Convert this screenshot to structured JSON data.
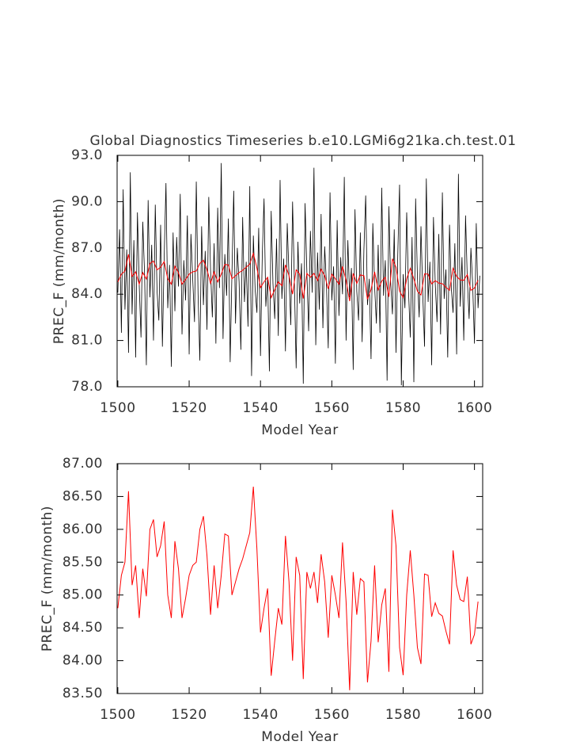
{
  "chart_data": [
    {
      "type": "line",
      "title": "Global Diagnostics Timeseries b.e10.LGMi6g21ka.ch.test.01",
      "xlabel": "Model Year",
      "ylabel": "PREC_F (mm/month)",
      "xlim": [
        1499.8,
        1602.3
      ],
      "xticks": [
        1500,
        1520,
        1540,
        1560,
        1580,
        1600
      ],
      "ylim": [
        78,
        93
      ],
      "yticks": [
        {
          "value": 78,
          "label": "78.0"
        },
        {
          "value": 81,
          "label": "81.0"
        },
        {
          "value": 84,
          "label": "84.0"
        },
        {
          "value": 87,
          "label": "87.0"
        },
        {
          "value": 90,
          "label": "90.0"
        },
        {
          "value": 93,
          "label": "93.0"
        }
      ],
      "series": [
        {
          "color": "#000000",
          "x": [
            1500,
            1500.5,
            1501,
            1501.5,
            1502,
            1502.5,
            1503,
            1503.5,
            1504,
            1504.5,
            1505,
            1505.5,
            1506,
            1506.5,
            1507,
            1507.5,
            1508,
            1508.5,
            1509,
            1509.5,
            1510,
            1510.5,
            1511,
            1511.5,
            1512,
            1512.5,
            1513,
            1513.5,
            1514,
            1514.5,
            1515,
            1515.5,
            1516,
            1516.5,
            1517,
            1517.5,
            1518,
            1518.5,
            1519,
            1519.5,
            1520,
            1520.5,
            1521,
            1521.5,
            1522,
            1522.5,
            1523,
            1523.5,
            1524,
            1524.5,
            1525,
            1525.5,
            1526,
            1526.5,
            1527,
            1527.5,
            1528,
            1528.5,
            1529,
            1529.5,
            1530,
            1530.5,
            1531,
            1531.5,
            1532,
            1532.5,
            1533,
            1533.5,
            1534,
            1534.5,
            1535,
            1535.5,
            1536,
            1536.5,
            1537,
            1537.5,
            1538,
            1538.5,
            1539,
            1539.5,
            1540,
            1540.5,
            1541,
            1541.5,
            1542,
            1542.5,
            1543,
            1543.5,
            1544,
            1544.5,
            1545,
            1545.5,
            1546,
            1546.5,
            1547,
            1547.5,
            1548,
            1548.5,
            1549,
            1549.5,
            1550,
            1550.5,
            1551,
            1551.5,
            1552,
            1552.5,
            1553,
            1553.5,
            1554,
            1554.5,
            1555,
            1555.5,
            1556,
            1556.5,
            1557,
            1557.5,
            1558,
            1558.5,
            1559,
            1559.5,
            1560,
            1560.5,
            1561,
            1561.5,
            1562,
            1562.5,
            1563,
            1563.5,
            1564,
            1564.5,
            1565,
            1565.5,
            1566,
            1566.5,
            1567,
            1567.5,
            1568,
            1568.5,
            1569,
            1569.5,
            1570,
            1570.5,
            1571,
            1571.5,
            1572,
            1572.5,
            1573,
            1573.5,
            1574,
            1574.5,
            1575,
            1575.5,
            1576,
            1576.5,
            1577,
            1577.5,
            1578,
            1578.5,
            1579,
            1579.5,
            1580,
            1580.5,
            1581,
            1581.5,
            1582,
            1582.5,
            1583,
            1583.5,
            1584,
            1584.5,
            1585,
            1585.5,
            1586,
            1586.5,
            1587,
            1587.5,
            1588,
            1588.5,
            1589,
            1589.5,
            1590,
            1590.5,
            1591,
            1591.5,
            1592,
            1592.5,
            1593,
            1593.5,
            1594,
            1594.5,
            1595,
            1595.5,
            1596,
            1596.5,
            1597,
            1597.5,
            1598,
            1598.5,
            1599,
            1599.5,
            1600,
            1600.5,
            1601,
            1601.5
          ],
          "values": [
            84.1,
            88.2,
            81.5,
            90.8,
            83.0,
            86.9,
            80.2,
            91.9,
            82.7,
            87.5,
            79.9,
            89.3,
            84.6,
            81.2,
            88.7,
            85.3,
            79.4,
            90.1,
            83.8,
            87.2,
            81.0,
            89.8,
            84.2,
            82.3,
            88.5,
            80.6,
            86.4,
            91.2,
            83.1,
            85.9,
            79.3,
            88.0,
            82.9,
            87.7,
            84.5,
            90.5,
            81.4,
            86.2,
            83.6,
            89.1,
            80.1,
            87.9,
            85.0,
            82.2,
            91.3,
            84.0,
            79.7,
            88.4,
            83.3,
            86.8,
            81.7,
            90.3,
            85.6,
            82.5,
            87.3,
            80.8,
            89.6,
            84.4,
            92.5,
            81.1,
            86.6,
            83.9,
            88.9,
            79.6,
            85.4,
            90.7,
            82.1,
            87.0,
            84.8,
            80.4,
            89.0,
            83.5,
            86.1,
            81.9,
            91.0,
            78.7,
            87.8,
            84.3,
            82.8,
            88.3,
            80.0,
            86.5,
            90.2,
            83.2,
            85.1,
            79.0,
            89.4,
            84.7,
            82.4,
            87.6,
            81.3,
            91.4,
            83.7,
            86.3,
            80.3,
            88.6,
            85.2,
            82.0,
            90.0,
            84.9,
            79.2,
            87.4,
            83.4,
            86.0,
            78.2,
            89.9,
            85.5,
            81.6,
            88.1,
            84.1,
            92.2,
            80.7,
            86.7,
            83.0,
            89.2,
            81.8,
            87.1,
            84.6,
            80.5,
            90.6,
            83.6,
            85.8,
            79.5,
            88.8,
            82.6,
            86.4,
            84.0,
            91.6,
            81.0,
            87.5,
            83.8,
            85.7,
            79.1,
            89.5,
            84.2,
            82.3,
            88.0,
            80.9,
            86.9,
            90.4,
            83.3,
            85.0,
            79.8,
            88.6,
            84.5,
            82.1,
            87.2,
            81.5,
            90.9,
            83.9,
            86.2,
            78.4,
            89.7,
            84.8,
            82.7,
            88.2,
            80.2,
            86.6,
            91.1,
            78.1,
            85.3,
            83.1,
            89.3,
            84.3,
            81.2,
            87.7,
            78.3,
            90.2,
            85.1,
            82.5,
            88.4,
            84.0,
            80.6,
            91.5,
            83.5,
            86.1,
            79.4,
            89.0,
            84.7,
            82.2,
            87.9,
            81.4,
            90.6,
            83.7,
            85.6,
            79.9,
            88.5,
            84.4,
            82.8,
            87.3,
            80.1,
            91.8,
            83.2,
            86.4,
            81.0,
            89.1,
            84.9,
            82.4,
            87.0,
            84.6,
            80.8,
            88.6,
            83.1,
            85.2
          ]
        },
        {
          "color": "#ff0000",
          "x": [
            1500,
            1501,
            1502,
            1503,
            1504,
            1505,
            1506,
            1507,
            1508,
            1509,
            1510,
            1511,
            1512,
            1513,
            1514,
            1515,
            1516,
            1517,
            1518,
            1519,
            1520,
            1521,
            1522,
            1523,
            1524,
            1525,
            1526,
            1527,
            1528,
            1529,
            1530,
            1531,
            1532,
            1533,
            1534,
            1535,
            1536,
            1537,
            1538,
            1539,
            1540,
            1541,
            1542,
            1543,
            1544,
            1545,
            1546,
            1547,
            1548,
            1549,
            1550,
            1551,
            1552,
            1553,
            1554,
            1555,
            1556,
            1557,
            1558,
            1559,
            1560,
            1561,
            1562,
            1563,
            1564,
            1565,
            1566,
            1567,
            1568,
            1569,
            1570,
            1571,
            1572,
            1573,
            1574,
            1575,
            1576,
            1577,
            1578,
            1579,
            1580,
            1581,
            1582,
            1583,
            1584,
            1585,
            1586,
            1587,
            1588,
            1589,
            1590,
            1591,
            1592,
            1593,
            1594,
            1595,
            1596,
            1597,
            1598,
            1599,
            1600,
            1601
          ],
          "values": [
            84.8,
            85.3,
            85.5,
            86.58,
            85.15,
            85.45,
            84.65,
            85.4,
            84.98,
            86.0,
            86.15,
            85.58,
            85.75,
            86.12,
            85.0,
            84.65,
            85.82,
            85.4,
            84.65,
            84.95,
            85.3,
            85.45,
            85.5,
            86.0,
            86.2,
            85.6,
            84.7,
            85.45,
            84.8,
            85.3,
            85.93,
            85.9,
            85.0,
            85.2,
            85.4,
            85.55,
            85.75,
            85.95,
            86.65,
            85.7,
            84.43,
            84.8,
            85.1,
            83.77,
            84.3,
            84.8,
            84.55,
            85.9,
            85.2,
            84.0,
            85.58,
            85.3,
            83.72,
            85.35,
            85.1,
            85.35,
            84.88,
            85.62,
            85.2,
            84.35,
            85.3,
            85.0,
            84.65,
            85.8,
            84.9,
            83.55,
            85.35,
            84.7,
            85.25,
            85.2,
            83.67,
            84.3,
            85.45,
            84.28,
            84.85,
            85.1,
            83.83,
            86.3,
            85.75,
            84.2,
            83.78,
            85.0,
            85.68,
            85.0,
            84.2,
            83.95,
            85.32,
            85.3,
            84.67,
            84.88,
            84.72,
            84.68,
            84.45,
            84.25,
            85.68,
            85.15,
            84.93,
            84.9,
            85.28,
            84.25,
            84.4,
            84.9
          ]
        }
      ]
    },
    {
      "type": "line",
      "xlabel": "Model Year",
      "ylabel": "PREC_F (mm/month)",
      "xlim": [
        1499.8,
        1602.3
      ],
      "xticks": [
        1500,
        1520,
        1540,
        1560,
        1580,
        1600
      ],
      "ylim": [
        83.5,
        87
      ],
      "yticks": [
        {
          "value": 83.5,
          "label": "83.50"
        },
        {
          "value": 84,
          "label": "84.00"
        },
        {
          "value": 84.5,
          "label": "84.50"
        },
        {
          "value": 85,
          "label": "85.00"
        },
        {
          "value": 85.5,
          "label": "85.50"
        },
        {
          "value": 86,
          "label": "86.00"
        },
        {
          "value": 86.5,
          "label": "86.50"
        },
        {
          "value": 87,
          "label": "87.00"
        }
      ],
      "series": [
        {
          "color": "#ff0000",
          "x": [
            1500,
            1501,
            1502,
            1503,
            1504,
            1505,
            1506,
            1507,
            1508,
            1509,
            1510,
            1511,
            1512,
            1513,
            1514,
            1515,
            1516,
            1517,
            1518,
            1519,
            1520,
            1521,
            1522,
            1523,
            1524,
            1525,
            1526,
            1527,
            1528,
            1529,
            1530,
            1531,
            1532,
            1533,
            1534,
            1535,
            1536,
            1537,
            1538,
            1539,
            1540,
            1541,
            1542,
            1543,
            1544,
            1545,
            1546,
            1547,
            1548,
            1549,
            1550,
            1551,
            1552,
            1553,
            1554,
            1555,
            1556,
            1557,
            1558,
            1559,
            1560,
            1561,
            1562,
            1563,
            1564,
            1565,
            1566,
            1567,
            1568,
            1569,
            1570,
            1571,
            1572,
            1573,
            1574,
            1575,
            1576,
            1577,
            1578,
            1579,
            1580,
            1581,
            1582,
            1583,
            1584,
            1585,
            1586,
            1587,
            1588,
            1589,
            1590,
            1591,
            1592,
            1593,
            1594,
            1595,
            1596,
            1597,
            1598,
            1599,
            1600,
            1601
          ],
          "values": [
            84.8,
            85.3,
            85.5,
            86.58,
            85.15,
            85.45,
            84.65,
            85.4,
            84.98,
            86.0,
            86.15,
            85.58,
            85.75,
            86.12,
            85.0,
            84.65,
            85.82,
            85.4,
            84.65,
            84.95,
            85.3,
            85.45,
            85.5,
            86.0,
            86.2,
            85.6,
            84.7,
            85.45,
            84.8,
            85.3,
            85.93,
            85.9,
            85.0,
            85.2,
            85.4,
            85.55,
            85.75,
            85.95,
            86.65,
            85.7,
            84.43,
            84.8,
            85.1,
            83.77,
            84.3,
            84.8,
            84.55,
            85.9,
            85.2,
            84.0,
            85.58,
            85.3,
            83.72,
            85.35,
            85.1,
            85.35,
            84.88,
            85.62,
            85.2,
            84.35,
            85.3,
            85.0,
            84.65,
            85.8,
            84.9,
            83.55,
            85.35,
            84.7,
            85.25,
            85.2,
            83.67,
            84.3,
            85.45,
            84.28,
            84.85,
            85.1,
            83.83,
            86.3,
            85.75,
            84.2,
            83.78,
            85.0,
            85.68,
            85.0,
            84.2,
            83.95,
            85.32,
            85.3,
            84.67,
            84.88,
            84.72,
            84.68,
            84.45,
            84.25,
            85.68,
            85.15,
            84.93,
            84.9,
            85.28,
            84.25,
            84.4,
            84.9
          ]
        }
      ]
    }
  ]
}
